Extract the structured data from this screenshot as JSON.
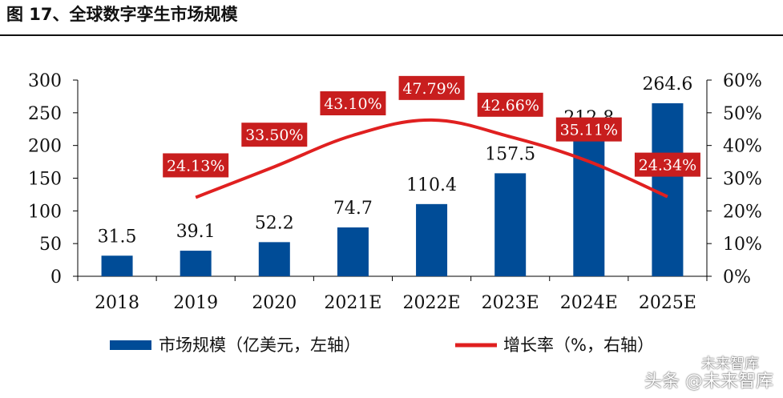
{
  "title": "图 17、全球数字孪生市场规模",
  "watermark": {
    "top_text": "未来智库",
    "main_text": "头条 @未来智库"
  },
  "colors": {
    "bar": "#004C97",
    "line": "#E02020",
    "label_bg": "#C81E1E",
    "label_text": "#ffffff",
    "axis_text": "#111111"
  },
  "chart_data": {
    "type": "bar",
    "categories": [
      "2018",
      "2019",
      "2020",
      "2021E",
      "2022E",
      "2023E",
      "2024E",
      "2025E"
    ],
    "series": [
      {
        "name": "市场规模（亿美元，左轴）",
        "type": "bar",
        "axis": "left",
        "values": [
          31.5,
          39.1,
          52.2,
          74.7,
          110.4,
          157.5,
          212.8,
          264.6
        ],
        "labels": [
          "31.5",
          "39.1",
          "52.2",
          "74.7",
          "110.4",
          "157.5",
          "212.8",
          "264.6"
        ]
      },
      {
        "name": "增长率（%，右轴）",
        "type": "line",
        "axis": "right",
        "values": [
          null,
          24.13,
          33.5,
          43.1,
          47.79,
          42.66,
          35.11,
          24.34
        ],
        "labels": [
          null,
          "24.13%",
          "33.50%",
          "43.10%",
          "47.79%",
          "42.66%",
          "35.11%",
          "24.34%"
        ]
      }
    ],
    "y_left": {
      "ylim": [
        0,
        300
      ],
      "ticks": [
        "0",
        "50",
        "100",
        "150",
        "200",
        "250",
        "300"
      ]
    },
    "y_right": {
      "ylim": [
        0,
        60
      ],
      "ticks": [
        "0%",
        "10%",
        "20%",
        "30%",
        "40%",
        "50%",
        "60%"
      ]
    },
    "legend": {
      "position": "bottom",
      "items": [
        "市场规模（亿美元，左轴）",
        "增长率（%，右轴）"
      ]
    },
    "grid": false
  }
}
